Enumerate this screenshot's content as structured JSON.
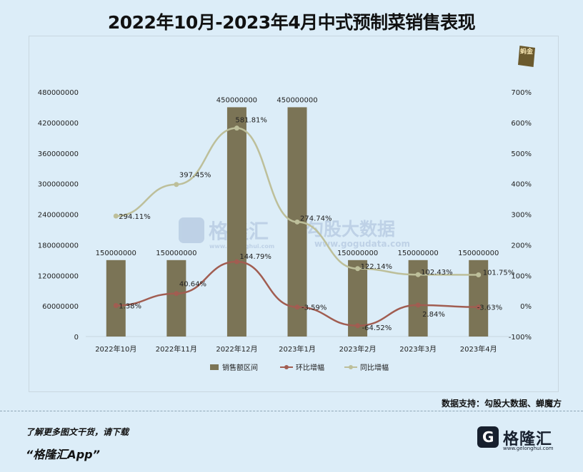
{
  "title": "2022年10月-2023年4月中式预制菜销售表现",
  "source_text": "数据支持：勾股大数据、蝉魔方",
  "footer": {
    "note": "了解更多图文干货，请下载",
    "app": "“格隆汇App”",
    "logo_name": "格隆汇",
    "logo_url": "www.gelonghui.com"
  },
  "watermark": {
    "left": "格隆汇",
    "left_url": "www.gelonghui.com",
    "right": "勾股大数据",
    "right_url": "www.gogudata.com"
  },
  "corner_badge": "蚂金",
  "colors": {
    "bar": "#7b7456",
    "mom_line": "#a15d51",
    "yoy_line": "#bdbf9a",
    "grid": "#c9d7e0"
  },
  "chart_data": {
    "type": "bar",
    "categories": [
      "2022年10月",
      "2022年11月",
      "2022年12月",
      "2023年1月",
      "2023年2月",
      "2023年3月",
      "2023年4月"
    ],
    "series": [
      {
        "name": "销售额区间",
        "type": "bar",
        "axis": "left",
        "values": [
          150000000,
          150000000,
          450000000,
          450000000,
          150000000,
          150000000,
          150000000
        ],
        "labels": [
          "150000000",
          "150000000",
          "450000000",
          "450000000",
          "150000000",
          "150000000",
          "150000000"
        ]
      },
      {
        "name": "环比增幅",
        "type": "line",
        "axis": "right",
        "values": [
          1.38,
          40.64,
          144.79,
          -3.59,
          -64.52,
          2.84,
          -3.63
        ],
        "labels": [
          "1.38%",
          "40.64%",
          "144.79%",
          "-3.59%",
          "-64.52%",
          "2.84%",
          "-3.63%"
        ]
      },
      {
        "name": "同比增幅",
        "type": "line",
        "axis": "right",
        "values": [
          294.11,
          397.45,
          581.81,
          274.74,
          122.14,
          102.43,
          101.75
        ],
        "labels": [
          "294.11%",
          "397.45%",
          "581.81%",
          "274.74%",
          "122.14%",
          "102.43%",
          "101.75%"
        ]
      }
    ],
    "y_left": {
      "range": [
        0,
        480000000
      ],
      "ticks": [
        0,
        60000000,
        120000000,
        180000000,
        240000000,
        300000000,
        360000000,
        420000000,
        480000000
      ],
      "tick_labels": [
        "0",
        "60000000",
        "120000000",
        "180000000",
        "240000000",
        "300000000",
        "360000000",
        "420000000",
        "480000000"
      ]
    },
    "y_right": {
      "range": [
        -100,
        700
      ],
      "ticks": [
        -100,
        0,
        100,
        200,
        300,
        400,
        500,
        600,
        700
      ],
      "tick_labels": [
        "-100%",
        "0%",
        "100%",
        "200%",
        "300%",
        "400%",
        "500%",
        "600%",
        "700%"
      ]
    },
    "grid": false,
    "legend_position": "bottom"
  }
}
